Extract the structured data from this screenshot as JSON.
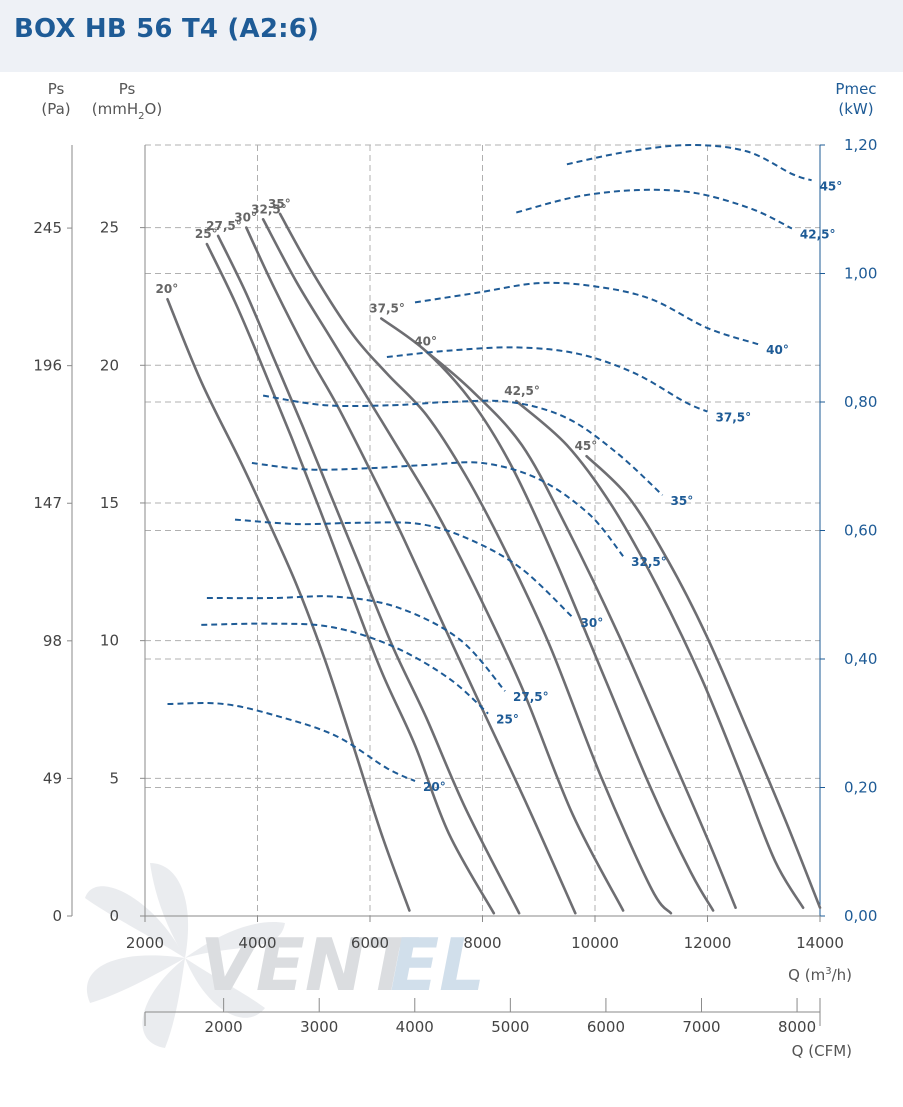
{
  "title": "BOX HB 56 T4 (A2:6)",
  "watermark": {
    "part1": "VENT",
    "part2": "EL"
  },
  "colors": {
    "accent": "#1e5b96",
    "curve": "#6e6e72",
    "grid": "#b0b0b0",
    "header_bg": "#eef1f6"
  },
  "chart_data": {
    "type": "line",
    "axes": {
      "ps_pa": {
        "label_line1": "Ps",
        "label_line2": "(Pa)",
        "ticks": [
          "0",
          "49",
          "98",
          "147",
          "196",
          "245"
        ]
      },
      "ps_mmh2o": {
        "label_line1": "Ps",
        "label_line2": "(mmH",
        "label_sub": "2",
        "label_end": "O)",
        "ticks": [
          "0",
          "5",
          "10",
          "15",
          "20",
          "25"
        ],
        "ylim": [
          0,
          28
        ]
      },
      "pmec": {
        "label_line1": "Pmec",
        "label_line2": "(kW)",
        "ticks": [
          "0,00",
          "0,20",
          "0,40",
          "0,60",
          "0,80",
          "1,00",
          "1,20"
        ],
        "ylim": [
          0,
          1.2
        ]
      },
      "q_m3h": {
        "label": "Q (m",
        "label_sup": "3",
        "label_end": "/h)",
        "ticks": [
          "2000",
          "4000",
          "6000",
          "8000",
          "10000",
          "12000",
          "14000"
        ],
        "xlim": [
          2000,
          14000
        ]
      },
      "q_cfm": {
        "label": "Q (CFM)",
        "ticks": [
          "2000",
          "3000",
          "4000",
          "5000",
          "6000",
          "7000",
          "8000"
        ]
      }
    },
    "grid": true,
    "pressure_series": [
      {
        "name": "20°",
        "points": [
          [
            2400,
            22.4
          ],
          [
            3000,
            19.4
          ],
          [
            3700,
            16.5
          ],
          [
            4200,
            14.3
          ],
          [
            4700,
            12.0
          ],
          [
            5200,
            9.3
          ],
          [
            5700,
            6.2
          ],
          [
            6200,
            3.0
          ],
          [
            6700,
            0.2
          ]
        ]
      },
      {
        "name": "25°",
        "points": [
          [
            3100,
            24.4
          ],
          [
            3600,
            22.3
          ],
          [
            4100,
            19.9
          ],
          [
            4600,
            17.4
          ],
          [
            5100,
            14.8
          ],
          [
            5600,
            12.1
          ],
          [
            6200,
            8.9
          ],
          [
            6800,
            6.2
          ],
          [
            7400,
            3.0
          ],
          [
            8200,
            0.1
          ]
        ]
      },
      {
        "name": "27,5°",
        "points": [
          [
            3300,
            24.7
          ],
          [
            3800,
            22.6
          ],
          [
            4300,
            20.2
          ],
          [
            4800,
            17.8
          ],
          [
            5300,
            15.3
          ],
          [
            5800,
            12.8
          ],
          [
            6400,
            9.8
          ],
          [
            7000,
            7.2
          ],
          [
            7700,
            3.9
          ],
          [
            8650,
            0.1
          ]
        ]
      },
      {
        "name": "30°",
        "points": [
          [
            3800,
            25.0
          ],
          [
            4300,
            22.8
          ],
          [
            4900,
            20.4
          ],
          [
            5400,
            18.6
          ],
          [
            6000,
            16.2
          ],
          [
            6600,
            13.7
          ],
          [
            7300,
            10.6
          ],
          [
            8000,
            7.5
          ],
          [
            8800,
            4.0
          ],
          [
            9650,
            0.1
          ]
        ]
      },
      {
        "name": "32,5°",
        "points": [
          [
            4100,
            25.3
          ],
          [
            4700,
            23.0
          ],
          [
            5300,
            21.0
          ],
          [
            5900,
            19.0
          ],
          [
            6500,
            17.0
          ],
          [
            7200,
            14.6
          ],
          [
            7900,
            11.8
          ],
          [
            8700,
            8.3
          ],
          [
            9600,
            3.7
          ],
          [
            10500,
            0.2
          ]
        ]
      },
      {
        "name": "35°",
        "points": [
          [
            4400,
            25.5
          ],
          [
            5000,
            23.3
          ],
          [
            5700,
            21.1
          ],
          [
            6300,
            19.7
          ],
          [
            7000,
            18.2
          ],
          [
            7700,
            16.0
          ],
          [
            8400,
            13.3
          ],
          [
            9200,
            9.8
          ],
          [
            10100,
            5.1
          ],
          [
            11000,
            1.0
          ],
          [
            11350,
            0.1
          ]
        ]
      },
      {
        "name": "37,5°",
        "points": [
          [
            6200,
            21.7
          ],
          [
            7000,
            20.5
          ],
          [
            7800,
            18.7
          ],
          [
            8500,
            16.4
          ],
          [
            9300,
            12.9
          ],
          [
            10200,
            8.5
          ],
          [
            11000,
            4.6
          ],
          [
            11700,
            1.6
          ],
          [
            12100,
            0.2
          ]
        ]
      },
      {
        "name": "40°",
        "points": [
          [
            7000,
            20.5
          ],
          [
            7800,
            19.1
          ],
          [
            8700,
            17.1
          ],
          [
            9500,
            14.1
          ],
          [
            10400,
            10.3
          ],
          [
            11300,
            6.1
          ],
          [
            12000,
            2.8
          ],
          [
            12500,
            0.3
          ]
        ]
      },
      {
        "name": "42,5°",
        "points": [
          [
            8600,
            18.7
          ],
          [
            9500,
            17.1
          ],
          [
            10300,
            14.9
          ],
          [
            11100,
            12.0
          ],
          [
            11900,
            8.6
          ],
          [
            12600,
            5.1
          ],
          [
            13200,
            2.0
          ],
          [
            13700,
            0.3
          ]
        ]
      },
      {
        "name": "45°",
        "points": [
          [
            9850,
            16.7
          ],
          [
            10600,
            15.2
          ],
          [
            11300,
            12.9
          ],
          [
            12000,
            10.1
          ],
          [
            12700,
            6.8
          ],
          [
            13400,
            3.4
          ],
          [
            14000,
            0.3
          ]
        ]
      }
    ],
    "power_series": [
      {
        "name": "20°",
        "points": [
          [
            2400,
            0.33
          ],
          [
            3400,
            0.33
          ],
          [
            4400,
            0.31
          ],
          [
            5400,
            0.28
          ],
          [
            6300,
            0.23
          ],
          [
            6800,
            0.21
          ]
        ]
      },
      {
        "name": "25°",
        "points": [
          [
            3000,
            0.453
          ],
          [
            4200,
            0.455
          ],
          [
            5300,
            0.45
          ],
          [
            6400,
            0.42
          ],
          [
            7400,
            0.37
          ],
          [
            8100,
            0.315
          ]
        ]
      },
      {
        "name": "27,5°",
        "points": [
          [
            3100,
            0.495
          ],
          [
            4300,
            0.495
          ],
          [
            5400,
            0.497
          ],
          [
            6500,
            0.48
          ],
          [
            7600,
            0.43
          ],
          [
            8400,
            0.35
          ]
        ]
      },
      {
        "name": "30°",
        "points": [
          [
            3600,
            0.617
          ],
          [
            4700,
            0.61
          ],
          [
            5800,
            0.612
          ],
          [
            6900,
            0.61
          ],
          [
            7800,
            0.585
          ],
          [
            8700,
            0.54
          ],
          [
            9600,
            0.465
          ]
        ]
      },
      {
        "name": "32,5°",
        "points": [
          [
            3900,
            0.705
          ],
          [
            4900,
            0.695
          ],
          [
            6000,
            0.697
          ],
          [
            7000,
            0.702
          ],
          [
            8000,
            0.705
          ],
          [
            9000,
            0.68
          ],
          [
            9900,
            0.625
          ],
          [
            10500,
            0.56
          ]
        ]
      },
      {
        "name": "35°",
        "points": [
          [
            4100,
            0.81
          ],
          [
            5200,
            0.795
          ],
          [
            6400,
            0.795
          ],
          [
            7400,
            0.8
          ],
          [
            8500,
            0.8
          ],
          [
            9500,
            0.775
          ],
          [
            10400,
            0.72
          ],
          [
            11200,
            0.655
          ]
        ]
      },
      {
        "name": "37,5°",
        "points": [
          [
            6300,
            0.87
          ],
          [
            7400,
            0.88
          ],
          [
            8600,
            0.885
          ],
          [
            9700,
            0.875
          ],
          [
            10700,
            0.845
          ],
          [
            11600,
            0.8
          ],
          [
            12000,
            0.785
          ]
        ]
      },
      {
        "name": "40°",
        "points": [
          [
            6800,
            0.955
          ],
          [
            7900,
            0.97
          ],
          [
            9000,
            0.985
          ],
          [
            10000,
            0.98
          ],
          [
            11000,
            0.96
          ],
          [
            12000,
            0.915
          ],
          [
            12900,
            0.89
          ]
        ]
      },
      {
        "name": "42,5°",
        "points": [
          [
            8600,
            1.095
          ],
          [
            9700,
            1.12
          ],
          [
            10800,
            1.13
          ],
          [
            11800,
            1.125
          ],
          [
            12800,
            1.1
          ],
          [
            13500,
            1.07
          ]
        ]
      },
      {
        "name": "45°",
        "points": [
          [
            9500,
            1.17
          ],
          [
            10600,
            1.19
          ],
          [
            11700,
            1.2
          ],
          [
            12700,
            1.19
          ],
          [
            13500,
            1.155
          ],
          [
            13850,
            1.145
          ]
        ]
      }
    ]
  }
}
